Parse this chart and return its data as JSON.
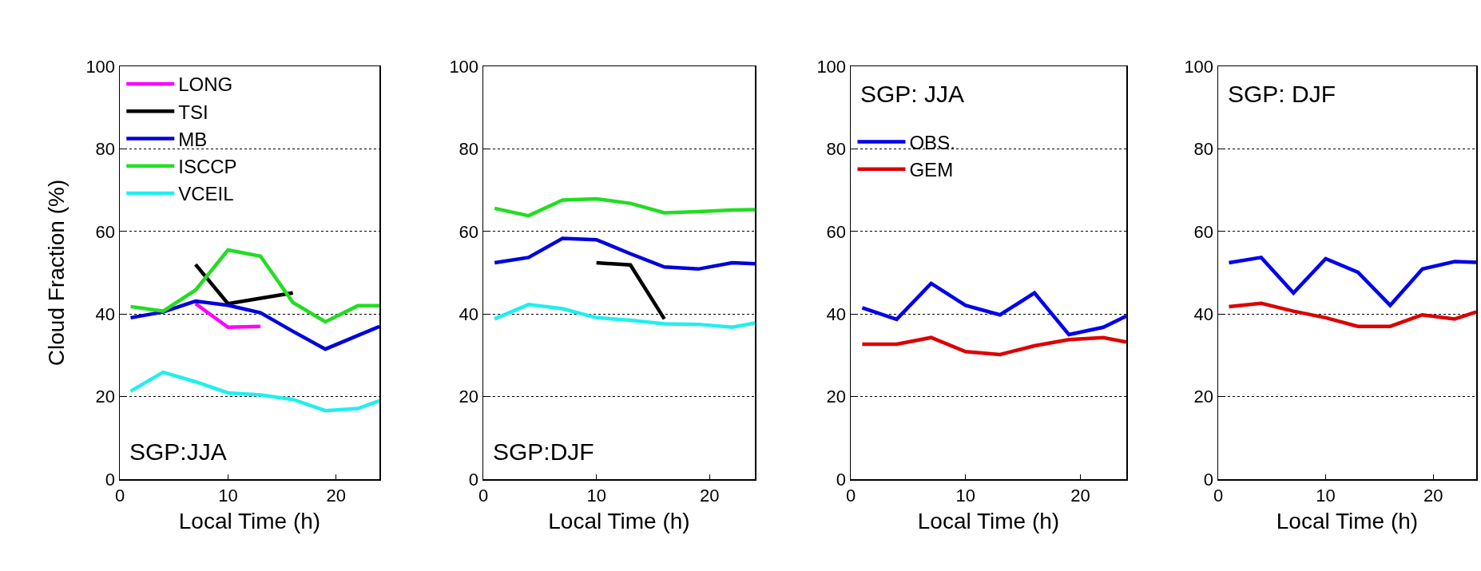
{
  "chart_data": [
    {
      "type": "line",
      "ylabel": "Cloud Fraction (%)",
      "xlabel": "Local Time (h)",
      "annotations": [
        "SGP:JJA"
      ],
      "xlim": [
        0,
        24
      ],
      "xticks": [
        0,
        10,
        20
      ],
      "ylim": [
        0,
        100
      ],
      "yticks": [
        0,
        20,
        40,
        60,
        80,
        100
      ],
      "grid": "y",
      "legend": "top left",
      "line_style": "solid",
      "marker": "none",
      "series": [
        {
          "name": "LONG",
          "color": "#ff00ff",
          "x": [
            7,
            10,
            13
          ],
          "values": [
            42.5,
            36.8,
            37
          ]
        },
        {
          "name": "TSI",
          "color": "#000000",
          "x": [
            7,
            10,
            13,
            16
          ],
          "values": [
            52,
            42.5,
            43.8,
            45.1
          ]
        },
        {
          "name": "MB",
          "color": "#0000dd",
          "x": [
            1,
            4,
            7,
            10,
            13,
            16,
            19,
            22,
            24
          ],
          "values": [
            39.1,
            40.5,
            43.1,
            42.1,
            40.3,
            35.8,
            31.5,
            34.8,
            37
          ]
        },
        {
          "name": "ISCCP",
          "color": "#22dd22",
          "x": [
            1,
            4,
            7,
            10,
            13,
            16,
            19,
            22,
            24
          ],
          "values": [
            41.8,
            40.7,
            45.8,
            55.5,
            54,
            42.8,
            38.1,
            42,
            42
          ]
        },
        {
          "name": "VCEIL",
          "color": "#22eeee",
          "x": [
            1,
            4,
            7,
            10,
            13,
            16,
            19,
            22,
            24
          ],
          "values": [
            21.3,
            25.9,
            23.6,
            20.9,
            20.4,
            19.3,
            16.6,
            17.1,
            19
          ]
        }
      ]
    },
    {
      "type": "line",
      "xlabel": "Local Time (h)",
      "annotations": [
        "SGP:DJF"
      ],
      "xlim": [
        0,
        24
      ],
      "xticks": [
        0,
        10,
        20
      ],
      "ylim": [
        0,
        100
      ],
      "yticks": [
        0,
        20,
        40,
        60,
        80,
        100
      ],
      "grid": "y",
      "line_style": "solid",
      "marker": "none",
      "series": [
        {
          "color": "#22dd22",
          "x": [
            1,
            4,
            7,
            10,
            13,
            16,
            19,
            22,
            24
          ],
          "values": [
            65.6,
            63.8,
            67.6,
            67.9,
            66.8,
            64.5,
            64.8,
            65.2,
            65.3
          ]
        },
        {
          "color": "#0000dd",
          "x": [
            1,
            4,
            7,
            10,
            13,
            16,
            19,
            22,
            24
          ],
          "values": [
            52.4,
            53.7,
            58.3,
            58,
            54.6,
            51.4,
            50.9,
            52.4,
            52.2
          ]
        },
        {
          "color": "#22eeee",
          "x": [
            1,
            4,
            7,
            10,
            13,
            16,
            19,
            22,
            24
          ],
          "values": [
            38.8,
            42.3,
            41.3,
            39.1,
            38.5,
            37.6,
            37.5,
            36.8,
            37.8
          ]
        },
        {
          "color": "#000000",
          "x": [
            10,
            13,
            16
          ],
          "values": [
            52.4,
            51.9,
            38.8
          ]
        }
      ]
    },
    {
      "type": "line",
      "xlabel": "Local Time (h)",
      "annotations": [
        "SGP: JJA"
      ],
      "xlim": [
        0,
        24
      ],
      "xticks": [
        0,
        10,
        20
      ],
      "ylim": [
        0,
        100
      ],
      "yticks": [
        0,
        20,
        40,
        60,
        80,
        100
      ],
      "grid": "y",
      "legend": "top left",
      "line_style": "solid",
      "marker": "none",
      "series": [
        {
          "name": "OBS.",
          "color": "#0000ee",
          "x": [
            1,
            4,
            7,
            10,
            13,
            16,
            19,
            22,
            24
          ],
          "values": [
            41.5,
            38.7,
            47.4,
            42.1,
            39.8,
            45.1,
            35,
            36.8,
            39.5
          ]
        },
        {
          "name": "GEM",
          "color": "#dd0000",
          "x": [
            1,
            4,
            7,
            10,
            13,
            16,
            19,
            22,
            24
          ],
          "values": [
            32.7,
            32.7,
            34.3,
            30.9,
            30.2,
            32.3,
            33.8,
            34.3,
            33.2
          ]
        }
      ]
    },
    {
      "type": "line",
      "xlabel": "Local Time (h)",
      "annotations": [
        "SGP: DJF"
      ],
      "xlim": [
        0,
        24
      ],
      "xticks": [
        0,
        10,
        20
      ],
      "ylim": [
        0,
        100
      ],
      "yticks": [
        0,
        20,
        40,
        60,
        80,
        100
      ],
      "grid": "y",
      "line_style": "solid",
      "marker": "none",
      "series": [
        {
          "color": "#0000ee",
          "x": [
            1,
            4,
            7,
            10,
            13,
            16,
            19,
            22,
            24
          ],
          "values": [
            52.4,
            53.7,
            45.1,
            53.4,
            50.1,
            42.1,
            50.9,
            52.7,
            52.5
          ]
        },
        {
          "color": "#dd0000",
          "x": [
            1,
            4,
            7,
            10,
            13,
            16,
            19,
            22,
            24
          ],
          "values": [
            41.8,
            42.6,
            40.7,
            39.1,
            37,
            37,
            39.8,
            38.8,
            40.5
          ]
        }
      ]
    }
  ]
}
